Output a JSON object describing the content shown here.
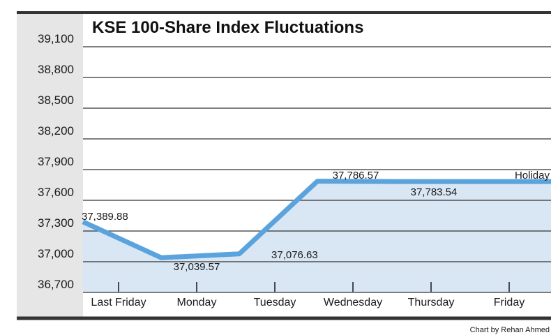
{
  "colors": {
    "line": "#5ba3dd",
    "fill": "#d9e7f5",
    "axis_panel": "#e6e6e6",
    "grid": "#333333",
    "frame": "#333333"
  },
  "credit": "Chart by Rehan Ahmed",
  "chart_data": {
    "type": "line",
    "title": "KSE 100-Share Index Fluctuations",
    "categories": [
      "Last Friday",
      "Monday",
      "Tuesday",
      "Wednesday",
      "Thursday",
      "Friday"
    ],
    "series": [
      {
        "values": [
          37389.88,
          37039.57,
          37076.63,
          37786.57,
          37783.54,
          37783.54
        ]
      }
    ],
    "data_labels": [
      "37,389.88",
      "37,039.57",
      "37,076.63",
      "37,786.57",
      "37,783.54",
      "Holiday"
    ],
    "y_ticks": [
      36700,
      37000,
      37300,
      37600,
      37900,
      38200,
      38500,
      38800,
      39100
    ],
    "y_tick_labels": [
      "36,700",
      "37,000",
      "37,300",
      "37,600",
      "37,900",
      "38,200",
      "38,500",
      "38,800",
      "39,100"
    ],
    "ylim": [
      36700,
      39100
    ],
    "grid": true,
    "area_fill": true
  }
}
